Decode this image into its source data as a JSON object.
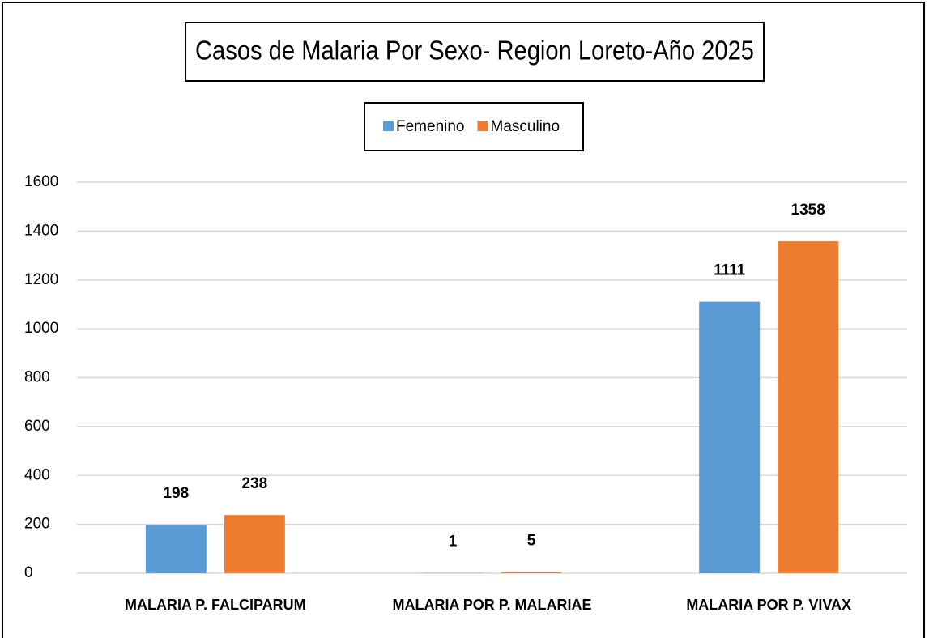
{
  "chart_data": {
    "type": "bar",
    "title": "Casos de Malaria Por Sexo- Region Loreto-Año 2025",
    "categories": [
      "MALARIA P. FALCIPARUM",
      "MALARIA POR P. MALARIAE",
      "MALARIA POR P. VIVAX"
    ],
    "series": [
      {
        "name": "Femenino",
        "color": "#5b9bd5",
        "values": [
          198,
          1,
          1111
        ]
      },
      {
        "name": "Masculino",
        "color": "#ed7d31",
        "values": [
          238,
          5,
          1358
        ]
      }
    ],
    "ylim": [
      0,
      1600
    ],
    "yticks": [
      0,
      200,
      400,
      600,
      800,
      1000,
      1200,
      1400,
      1600
    ],
    "grid": true,
    "legend": "top"
  }
}
